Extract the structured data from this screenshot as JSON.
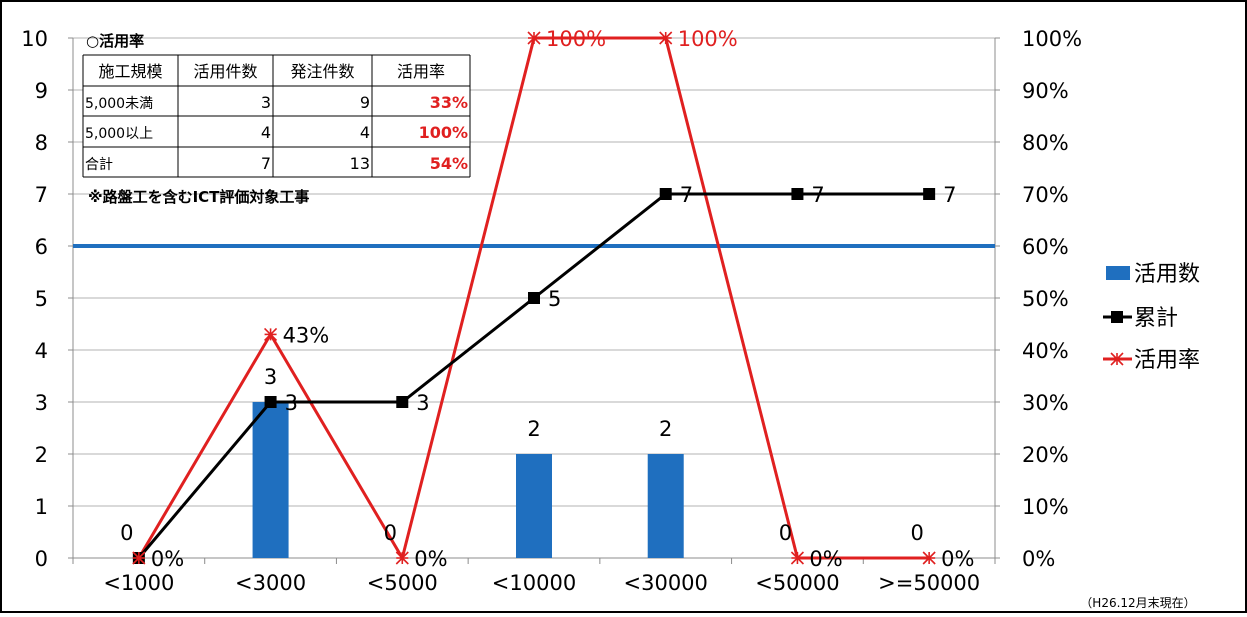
{
  "chart_data": {
    "type": "bar",
    "categories": [
      "<1000",
      "<3000",
      "<5000",
      "<10000",
      "<30000",
      "<50000",
      ">=50000"
    ],
    "series": [
      {
        "name": "活用数",
        "type": "bar",
        "axis": "left",
        "values": [
          0,
          3,
          0,
          2,
          2,
          0,
          0
        ],
        "data_labels": [
          "0",
          "3",
          "0",
          "2",
          "2",
          "0",
          "0"
        ],
        "color": "#1f6fbf"
      },
      {
        "name": "累計",
        "type": "line",
        "axis": "left",
        "values": [
          0,
          3,
          3,
          5,
          7,
          7,
          7
        ],
        "data_labels": [
          "",
          "3",
          "3",
          "5",
          "7",
          "7",
          "7"
        ],
        "color": "#000000"
      },
      {
        "name": "活用率",
        "type": "line",
        "axis": "right",
        "values": [
          0,
          43,
          0,
          100,
          100,
          0,
          0
        ],
        "data_labels": [
          "0%",
          "43%",
          "0%",
          "100%",
          "100%",
          "0%",
          "0%"
        ],
        "color": "#e02020"
      }
    ],
    "reference_line": {
      "axis": "right",
      "value": 60,
      "color": "#1f6fbf"
    },
    "left_axis": {
      "ylim": [
        0,
        10
      ],
      "ticks": [
        "0",
        "1",
        "2",
        "3",
        "4",
        "5",
        "6",
        "7",
        "8",
        "9",
        "10"
      ]
    },
    "right_axis": {
      "ylim": [
        0,
        100
      ],
      "ticks": [
        "0%",
        "10%",
        "20%",
        "30%",
        "40%",
        "50%",
        "60%",
        "70%",
        "80%",
        "90%",
        "100%"
      ]
    },
    "legend_position": "right",
    "grid": "horizontal",
    "footnote": "（H26.12月末現在）",
    "inset_table": {
      "title": "○活用率",
      "headers": [
        "施工規模",
        "活用件数",
        "発注件数",
        "活用率"
      ],
      "rows": [
        [
          "5,000未満",
          "3",
          "9",
          "33%"
        ],
        [
          "5,000以上",
          "4",
          "4",
          "100%"
        ],
        [
          "合計",
          "7",
          "13",
          "54%"
        ]
      ],
      "note": "※路盤工を含むICT評価対象工事"
    }
  }
}
